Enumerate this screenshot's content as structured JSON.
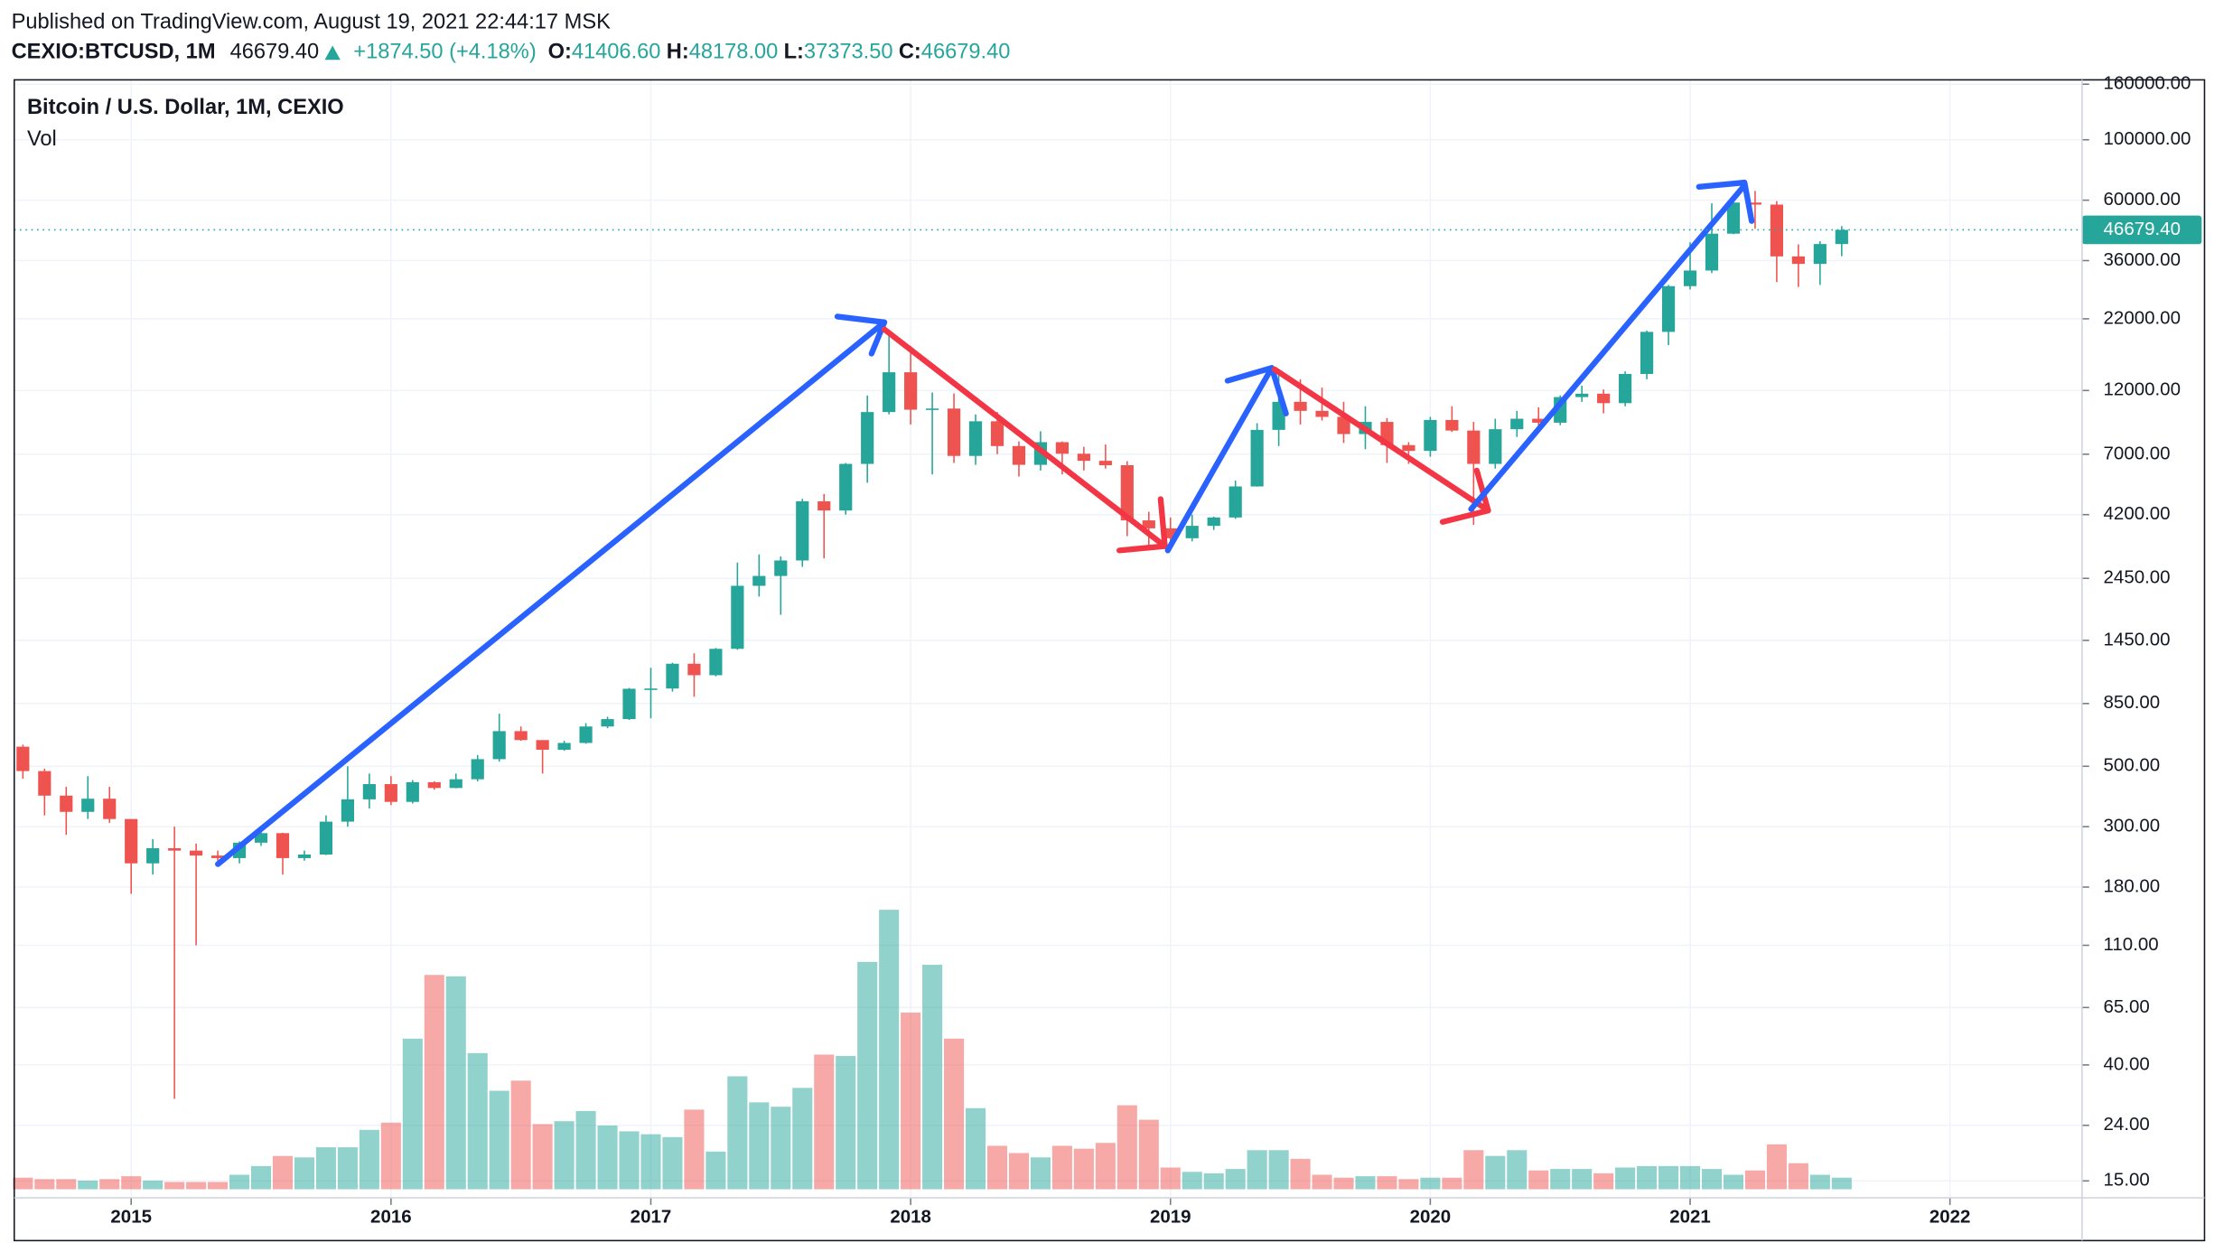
{
  "header": {
    "published": "Published on TradingView.com, August 19, 2021 22:44:17 MSK",
    "symbol": "CEXIO:BTCUSD, 1M",
    "last": "46679.40",
    "change": "+1874.50 (+4.18%)",
    "ohlc": [
      {
        "key": "O:",
        "value": "41406.60"
      },
      {
        "key": "H:",
        "value": "48178.00"
      },
      {
        "key": "L:",
        "value": "37373.50"
      },
      {
        "key": "C:",
        "value": "46679.40"
      }
    ]
  },
  "chart_data": {
    "type": "candlestick",
    "log_scale": true,
    "grid": true,
    "up_color": "#26a69a",
    "down_color": "#ef5350",
    "series": [
      {
        "name": "Bitcoin / U.S. Dollar, 1M, CEXIO",
        "type": "candlestick",
        "open": [
          590,
          480,
          390,
          340,
          380,
          320,
          220,
          250,
          245,
          235,
          230,
          262,
          284,
          230,
          237,
          313,
          378,
          430,
          370,
          437,
          416,
          448,
          531,
          673,
          624,
          575,
          609,
          700,
          745,
          963,
          965,
          1190,
          1080,
          1350,
          2300,
          2500,
          2850,
          4700,
          4350,
          6450,
          10000,
          14000,
          10200,
          10300,
          6900,
          9250,
          7500,
          6400,
          7750,
          7030,
          6620,
          6380,
          4000,
          3740,
          3440,
          3820,
          4100,
          5330,
          8600,
          10900,
          10100,
          9600,
          8300,
          9200,
          7560,
          7200,
          9350,
          8550,
          6450,
          8650,
          9450,
          9140,
          11350,
          11680,
          10780,
          13800,
          19700,
          29000,
          33100,
          45200,
          58800,
          57800,
          37300,
          35000,
          41406.6
        ],
        "high": [
          600,
          490,
          420,
          460,
          420,
          320,
          270,
          300,
          260,
          245,
          265,
          300,
          285,
          245,
          330,
          500,
          470,
          460,
          445,
          440,
          470,
          550,
          780,
          700,
          620,
          620,
          720,
          760,
          970,
          1150,
          1200,
          1300,
          1360,
          2800,
          3000,
          2950,
          4800,
          5000,
          6500,
          11500,
          19800,
          17500,
          11800,
          11700,
          9800,
          10000,
          7800,
          8500,
          7800,
          7450,
          7600,
          6600,
          4300,
          4100,
          4200,
          4130,
          5600,
          9100,
          14000,
          13200,
          12300,
          10900,
          10500,
          9500,
          7750,
          9600,
          10500,
          9200,
          9450,
          10100,
          10400,
          11500,
          12500,
          12100,
          14100,
          19900,
          29300,
          42000,
          58400,
          61700,
          64900,
          59500,
          41300,
          42400,
          48178
        ],
        "low": [
          450,
          330,
          280,
          320,
          310,
          170,
          200,
          30,
          110,
          225,
          220,
          255,
          200,
          225,
          236,
          300,
          350,
          360,
          365,
          410,
          415,
          440,
          520,
          620,
          470,
          570,
          605,
          690,
          740,
          750,
          940,
          900,
          1070,
          1340,
          2100,
          1800,
          2700,
          2900,
          4200,
          5500,
          9800,
          9000,
          5900,
          6500,
          6400,
          7000,
          5800,
          6100,
          5900,
          6100,
          6200,
          3500,
          3100,
          3330,
          3350,
          3690,
          4050,
          5320,
          7500,
          9000,
          9300,
          7700,
          7300,
          6500,
          6450,
          6850,
          8450,
          3850,
          6200,
          8100,
          8900,
          8950,
          10900,
          9900,
          10500,
          13200,
          17600,
          28200,
          32400,
          45000,
          47100,
          30000,
          28800,
          29300,
          37373.5
        ],
        "close": [
          480,
          390,
          340,
          380,
          320,
          220,
          250,
          245,
          235,
          230,
          262,
          284,
          230,
          237,
          313,
          378,
          430,
          370,
          437,
          416,
          448,
          531,
          673,
          624,
          575,
          609,
          700,
          745,
          963,
          965,
          1190,
          1080,
          1350,
          2300,
          2500,
          2850,
          4700,
          4350,
          6450,
          10000,
          14000,
          10200,
          10300,
          6900,
          9250,
          7500,
          6400,
          7750,
          7030,
          6620,
          6380,
          4000,
          3740,
          3440,
          3820,
          4100,
          5330,
          8600,
          10900,
          10100,
          9600,
          8300,
          9200,
          7560,
          7200,
          9350,
          8550,
          6450,
          8650,
          9450,
          9140,
          11350,
          11680,
          10780,
          13800,
          19700,
          29000,
          33100,
          45200,
          58800,
          57800,
          37300,
          35000,
          41406.6,
          46679.4
        ]
      },
      {
        "name": "Vol",
        "type": "volume",
        "values": [
          8,
          7,
          7,
          6,
          7,
          9,
          6,
          5,
          5,
          5,
          10,
          16,
          23,
          22,
          29,
          29,
          41,
          46,
          104,
          148,
          147,
          94,
          68,
          75,
          45,
          47,
          54,
          44,
          40,
          38,
          36,
          55,
          26,
          78,
          60,
          57,
          70,
          93,
          92,
          157,
          193,
          122,
          155,
          104,
          56,
          30,
          25,
          22,
          30,
          28,
          32,
          58,
          48,
          15,
          12,
          11,
          14,
          27,
          27,
          21,
          10,
          8,
          9,
          9,
          7,
          8,
          8,
          27,
          23,
          27,
          13,
          14,
          14,
          11,
          15,
          16,
          16,
          16,
          14,
          10,
          13,
          31,
          18,
          10,
          8
        ]
      }
    ],
    "price_line": 46679.4,
    "price_line_label": "46679.40",
    "xlim": [
      -0.4,
      95.1
    ],
    "xticks": [
      {
        "value": 5,
        "label": "2015"
      },
      {
        "value": 17,
        "label": "2016"
      },
      {
        "value": 29,
        "label": "2017"
      },
      {
        "value": 41,
        "label": "2018"
      },
      {
        "value": 53,
        "label": "2019"
      },
      {
        "value": 65,
        "label": "2020"
      },
      {
        "value": 77,
        "label": "2021"
      },
      {
        "value": 89,
        "label": "2022"
      }
    ],
    "ylim": [
      13,
      166000
    ],
    "yticks": [
      {
        "value": 160000,
        "label": "160000.00"
      },
      {
        "value": 100000,
        "label": "100000.00"
      },
      {
        "value": 60000,
        "label": "60000.00"
      },
      {
        "value": 36000,
        "label": "36000.00"
      },
      {
        "value": 22000,
        "label": "22000.00"
      },
      {
        "value": 12000,
        "label": "12000.00"
      },
      {
        "value": 7000,
        "label": "7000.00"
      },
      {
        "value": 4200,
        "label": "4200.00"
      },
      {
        "value": 2450,
        "label": "2450.00"
      },
      {
        "value": 1450,
        "label": "1450.00"
      },
      {
        "value": 850,
        "label": "850.00"
      },
      {
        "value": 500,
        "label": "500.00"
      },
      {
        "value": 300,
        "label": "300.00"
      },
      {
        "value": 180,
        "label": "180.00"
      },
      {
        "value": 110,
        "label": "110.00"
      },
      {
        "value": 65,
        "label": "65.00"
      },
      {
        "value": 40,
        "label": "40.00"
      },
      {
        "value": 24,
        "label": "24.00"
      },
      {
        "value": 15,
        "label": "15.00"
      }
    ]
  }
}
